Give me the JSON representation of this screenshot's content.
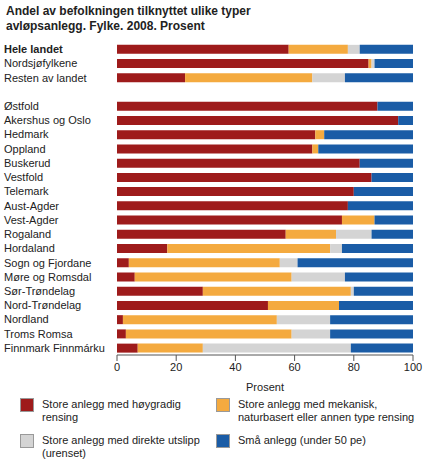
{
  "chart_data": {
    "type": "bar",
    "title": "Andel av befolkningen tilknyttet ulike typer avløpsanlegg. Fylke. 2008. Prosent",
    "orientation": "horizontal",
    "stacked": true,
    "grid": false,
    "xlabel": "Prosent",
    "xlim": [
      0,
      100
    ],
    "xticks": [
      0,
      20,
      40,
      60,
      80,
      100
    ],
    "categories": [
      "Hele landet",
      "Nordsjøfylkene",
      "Resten av landet",
      null,
      "Østfold",
      "Akershus og Oslo",
      "Hedmark",
      "Oppland",
      "Buskerud",
      "Vestfold",
      "Telemark",
      "Aust-Agder",
      "Vest-Agder",
      "Rogaland",
      "Hordaland",
      "Sogn og Fjordane",
      "Møre og Romsdal",
      "Sør-Trøndelag",
      "Nord-Trøndelag",
      "Nordland",
      "Troms Romsa",
      "Finnmark Finnmárku"
    ],
    "series": [
      {
        "name": "Store anlegg med høygradig rensing",
        "color": "#9e1b1b",
        "values": [
          58,
          85,
          23,
          null,
          88,
          95,
          67,
          66,
          82,
          86,
          80,
          78,
          76,
          57,
          17,
          4,
          6,
          29,
          51,
          2,
          3,
          7
        ]
      },
      {
        "name": "Store anlegg med mekanisk, naturbasert eller annen type rensing",
        "color": "#f4aa3f",
        "values": [
          20,
          1,
          43,
          null,
          0,
          0,
          3,
          2,
          0,
          0,
          0,
          0,
          11,
          17,
          55,
          51,
          53,
          50,
          24,
          52,
          56,
          22
        ]
      },
      {
        "name": "Store anlegg med direkte utslipp (urenset)",
        "color": "#d4d4d4",
        "values": [
          4,
          1,
          11,
          null,
          0,
          0,
          0,
          0,
          0,
          0,
          0,
          0,
          0,
          12,
          4,
          6,
          18,
          1,
          0,
          18,
          13,
          50
        ]
      },
      {
        "name": "Små anlegg (under 50 pe)",
        "color": "#1a5ca6",
        "values": [
          18,
          13,
          23,
          null,
          12,
          5,
          30,
          32,
          18,
          14,
          20,
          22,
          13,
          14,
          24,
          39,
          23,
          20,
          25,
          28,
          28,
          21
        ]
      }
    ]
  }
}
